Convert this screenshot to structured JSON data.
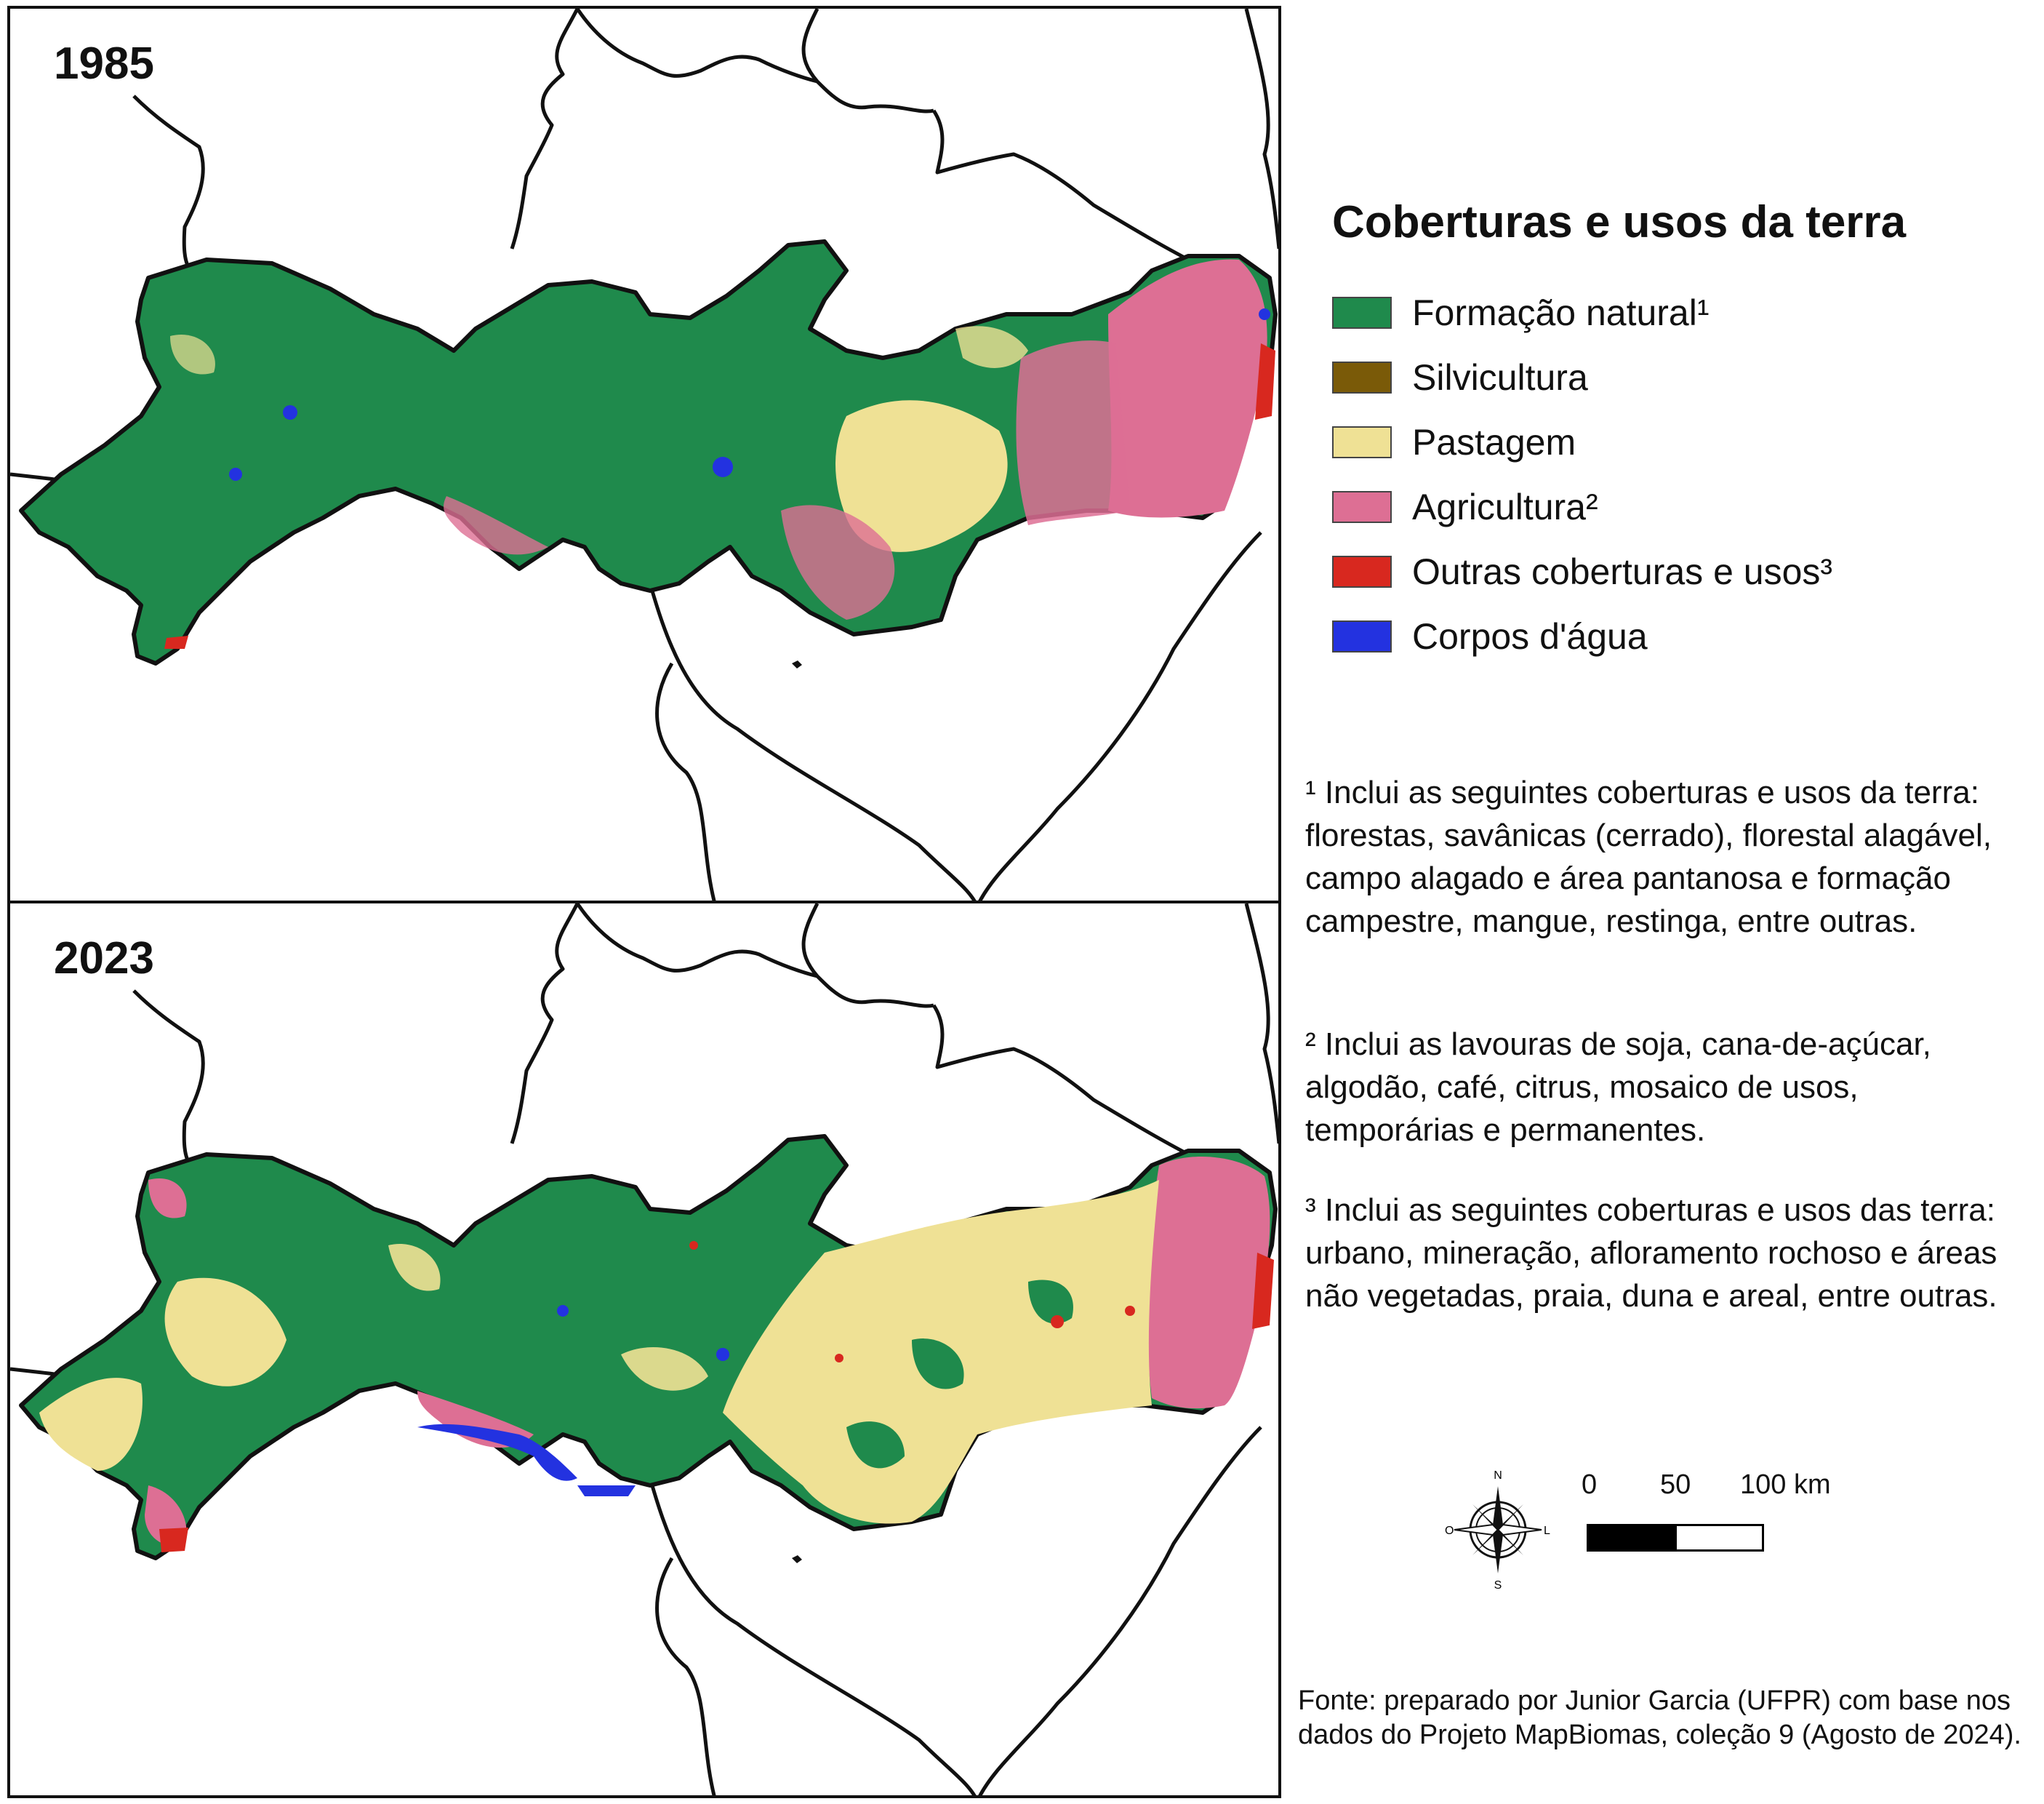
{
  "maps": [
    {
      "year": "1985"
    },
    {
      "year": "2023"
    }
  ],
  "legend": {
    "title": "Coberturas e usos da terra",
    "items": [
      {
        "label": "Formação natural¹",
        "color": "#1f8a4c"
      },
      {
        "label": "Silvicultura",
        "color": "#7a5a08"
      },
      {
        "label": "Pastagem",
        "color": "#efe195"
      },
      {
        "label": "Agricultura²",
        "color": "#dd6f94"
      },
      {
        "label": "Outras coberturas e usos³",
        "color": "#d8281f"
      },
      {
        "label": "Corpos d'água",
        "color": "#2332e0"
      }
    ]
  },
  "notes": {
    "note1": "¹ Inclui as seguintes coberturas e usos da terra: florestas, savânicas (cerrado), florestal alagável, campo alagado e área pantanosa e formação campestre, mangue, restinga, entre outras.",
    "note2": "² Inclui as lavouras de soja, cana-de-açúcar, algodão, café, citrus, mosaico de usos, temporárias e permanentes.",
    "note3": "³ Inclui as seguintes coberturas e usos das terra: urbano, mineração, afloramento rochoso e áreas não vegetadas, praia, duna e areal, entre outras."
  },
  "compass": {
    "north": "N",
    "south": "S",
    "east": "L",
    "west": "O"
  },
  "scale_bar": {
    "labels": [
      "0",
      "50",
      "100 km"
    ]
  },
  "source": "Fonte: preparado por Junior Garcia (UFPR) com base nos dados do Projeto MapBiomas, coleção 9 (Agosto de 2024).",
  "colors": {
    "boundary": "#111111",
    "background": "#ffffff"
  }
}
